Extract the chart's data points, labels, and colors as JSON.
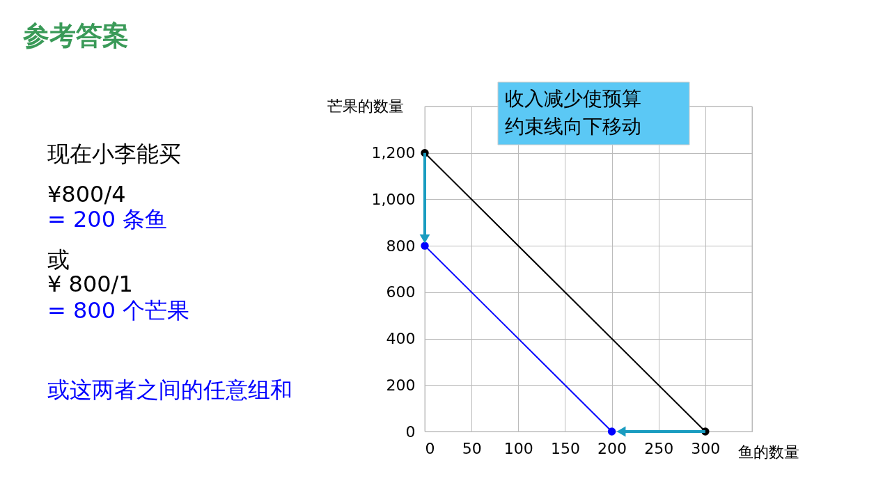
{
  "chart_data": {
    "type": "line",
    "title": "参考答案",
    "xlabel": "鱼的数量",
    "ylabel": "芒果的数量",
    "xlim": [
      0,
      350
    ],
    "xticks": [
      0,
      50,
      100,
      150,
      200,
      250,
      300,
      {
        "value": 350,
        "label": null
      }
    ],
    "ylim": [
      0,
      1400
    ],
    "yticks": [
      0,
      200,
      400,
      600,
      800,
      {
        "value": 1000,
        "label": "1,000"
      },
      {
        "value": 1200,
        "label": "1,200"
      },
      {
        "value": 1400,
        "label": null
      }
    ],
    "series": [
      {
        "color": "#000000",
        "x": [
          0,
          300
        ],
        "values": [
          1200,
          0
        ]
      },
      {
        "color": "#0000ff",
        "x": [
          0,
          200
        ],
        "values": [
          800,
          0
        ]
      },
      {
        "color": "#1a9cc0",
        "marker": "triangle",
        "x": [
          0,
          0
        ],
        "values": [
          1200,
          830
        ]
      },
      {
        "color": "#1a9cc0",
        "marker": "triangle",
        "x": [
          300,
          210
        ],
        "values": [
          0,
          0
        ]
      }
    ],
    "marker": "circle",
    "grid": true,
    "annotations": [
      "收入减少使预算约束线向下移动",
      "现在小李能买",
      "¥800/4",
      "= 200 条鱼",
      "或",
      "¥ 800/1",
      "= 800 个芒果",
      "或这两者之间的任意组和"
    ]
  }
}
